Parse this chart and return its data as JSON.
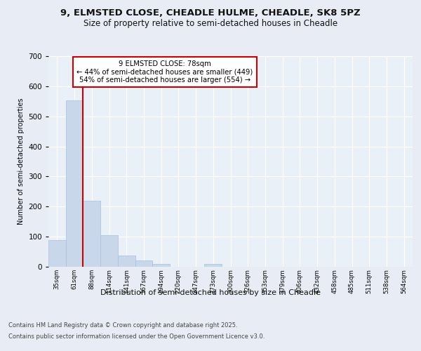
{
  "title_line1": "9, ELMSTED CLOSE, CHEADLE HULME, CHEADLE, SK8 5PZ",
  "title_line2": "Size of property relative to semi-detached houses in Cheadle",
  "xlabel": "Distribution of semi-detached houses by size in Cheadle",
  "ylabel": "Number of semi-detached properties",
  "categories": [
    "35sqm",
    "61sqm",
    "88sqm",
    "114sqm",
    "141sqm",
    "167sqm",
    "194sqm",
    "220sqm",
    "247sqm",
    "273sqm",
    "300sqm",
    "326sqm",
    "353sqm",
    "379sqm",
    "406sqm",
    "432sqm",
    "458sqm",
    "485sqm",
    "511sqm",
    "538sqm",
    "564sqm"
  ],
  "values": [
    88,
    554,
    220,
    105,
    37,
    20,
    10,
    0,
    0,
    9,
    0,
    0,
    0,
    0,
    0,
    0,
    0,
    0,
    0,
    0,
    0
  ],
  "bar_color": "#c8d8ea",
  "bar_edge_color": "#aac0d8",
  "vline_color": "#cc0000",
  "vline_x": 1.5,
  "annotation_text": "9 ELMSTED CLOSE: 78sqm\n← 44% of semi-detached houses are smaller (449)\n54% of semi-detached houses are larger (554) →",
  "annotation_box_color": "#ffffff",
  "annotation_edge_color": "#cc0000",
  "footer_line1": "Contains HM Land Registry data © Crown copyright and database right 2025.",
  "footer_line2": "Contains public sector information licensed under the Open Government Licence v3.0.",
  "background_color": "#e8edf5",
  "plot_area_color": "#eaf0f8",
  "grid_color": "#ffffff",
  "ylim": [
    0,
    700
  ],
  "yticks": [
    0,
    100,
    200,
    300,
    400,
    500,
    600,
    700
  ]
}
